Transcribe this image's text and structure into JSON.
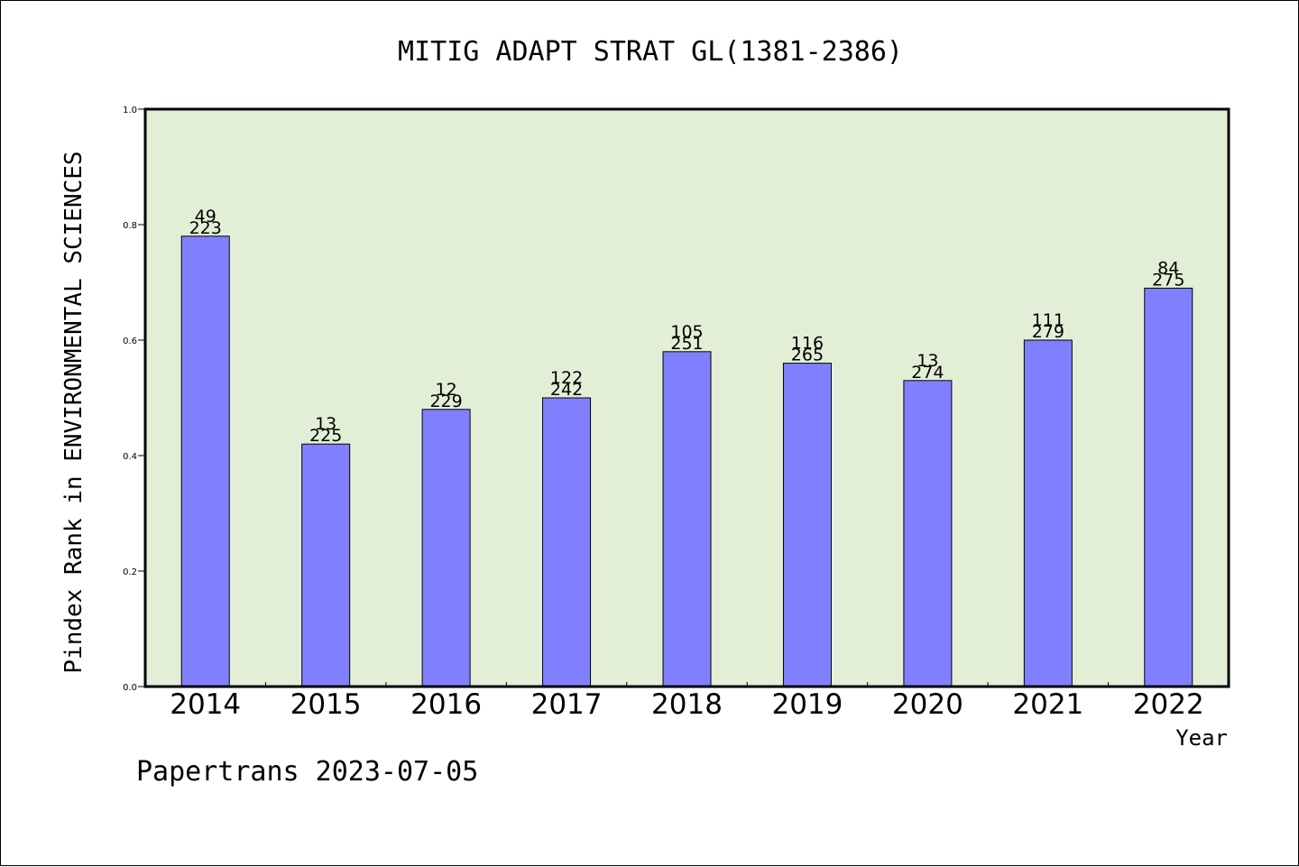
{
  "chart_data": {
    "type": "bar",
    "title": "MITIG ADAPT STRAT GL(1381-2386)",
    "ylabel": "Pindex Rank in ENVIRONMENTAL SCIENCES",
    "xlabel": "Year",
    "ylim": [
      0,
      1.0
    ],
    "yticks": [
      "0.0",
      "0.2",
      "0.4",
      "0.6",
      "0.8",
      "1.0"
    ],
    "categories": [
      "2014",
      "2015",
      "2016",
      "2017",
      "2018",
      "2019",
      "2020",
      "2021",
      "2022"
    ],
    "values": [
      0.78,
      0.42,
      0.48,
      0.5,
      0.58,
      0.56,
      0.53,
      0.6,
      0.69
    ],
    "bar_labels_top": [
      "49",
      "13",
      "12",
      "122",
      "105",
      "116",
      "13",
      "111",
      "84"
    ],
    "bar_labels_bottom": [
      "223",
      "225",
      "229",
      "242",
      "251",
      "265",
      "274",
      "279",
      "275"
    ],
    "grid": false,
    "colors": {
      "bar_fill": "#8080ff",
      "plot_background": "#e2efd6",
      "axis": "#000000"
    }
  },
  "footer": {
    "text": "Papertrans 2023-07-05"
  }
}
